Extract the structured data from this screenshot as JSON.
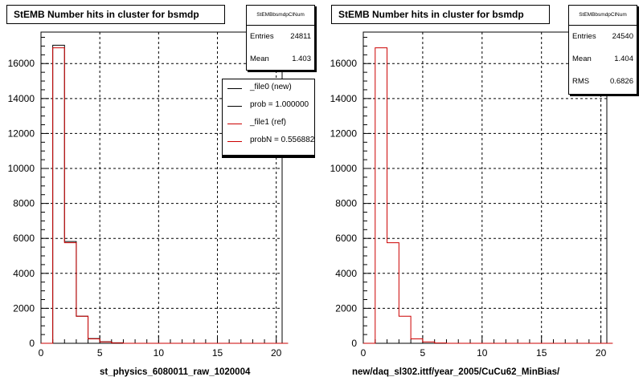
{
  "footer_text": "",
  "panels": [
    {
      "title": "StEMB Number hits in cluster for bsmdp",
      "stats": {
        "name": "StEMBbsmdpClNum",
        "rows": [
          {
            "label": "Entries",
            "value": "24811"
          },
          {
            "label": "Mean",
            "value": "1.403"
          }
        ]
      },
      "legend": [
        {
          "label": "_file0 (new)",
          "color": "#000000"
        },
        {
          "label": "prob = 1.000000",
          "color": "#000000"
        },
        {
          "label": "_file1 (ref)",
          "color": "#cc0000"
        },
        {
          "label": "probN = 0.556882",
          "color": "#cc0000"
        }
      ],
      "xlabel": "st_physics_6080011_raw_1020004"
    },
    {
      "title": "StEMB Number hits in cluster for bsmdp",
      "stats": {
        "name": "StEMBbsmdpClNum",
        "rows": [
          {
            "label": "Entries",
            "value": "24540"
          },
          {
            "label": "Mean",
            "value": "1.404"
          },
          {
            "label": "RMS",
            "value": "0.6826"
          }
        ]
      },
      "legend": [],
      "xlabel": "new/daq_sl302.ittf/year_2005/CuCu62_MinBias/"
    }
  ],
  "chart_data": [
    {
      "type": "bar",
      "histogram": true,
      "title": "StEMB Number hits in cluster for bsmdp",
      "xlabel": "st_physics_6080011_raw_1020004",
      "ylabel": "",
      "xlim": [
        0,
        20.5
      ],
      "ylim": [
        0,
        17800
      ],
      "xticks": [
        0,
        5,
        10,
        15,
        20
      ],
      "yticks": [
        0,
        2000,
        4000,
        6000,
        8000,
        10000,
        12000,
        14000,
        16000
      ],
      "grid": true,
      "bin_edges": [
        0,
        1,
        2,
        3,
        4,
        5,
        6,
        7,
        8,
        9,
        10,
        11,
        12,
        13,
        14,
        15,
        16,
        17,
        18,
        19,
        20,
        21
      ],
      "series": [
        {
          "name": "_file0 (new)",
          "color": "#000000",
          "values": [
            0,
            17050,
            5820,
            1550,
            270,
            90,
            30,
            0,
            0,
            0,
            0,
            0,
            0,
            0,
            0,
            0,
            0,
            0,
            0,
            0,
            0
          ]
        },
        {
          "name": "_file1 (ref)",
          "color": "#cc0000",
          "values": [
            0,
            16900,
            5750,
            1550,
            250,
            80,
            20,
            0,
            0,
            0,
            0,
            0,
            0,
            0,
            0,
            0,
            0,
            0,
            0,
            0,
            0
          ]
        }
      ]
    },
    {
      "type": "bar",
      "histogram": true,
      "title": "StEMB Number hits in cluster for bsmdp",
      "xlabel": "new/daq_sl302.ittf/year_2005/CuCu62_MinBias/",
      "ylabel": "",
      "xlim": [
        0,
        20.5
      ],
      "ylim": [
        0,
        17800
      ],
      "xticks": [
        0,
        5,
        10,
        15,
        20
      ],
      "yticks": [
        0,
        2000,
        4000,
        6000,
        8000,
        10000,
        12000,
        14000,
        16000
      ],
      "grid": true,
      "bin_edges": [
        0,
        1,
        2,
        3,
        4,
        5,
        6,
        7,
        8,
        9,
        10,
        11,
        12,
        13,
        14,
        15,
        16,
        17,
        18,
        19,
        20,
        21
      ],
      "series": [
        {
          "name": "",
          "color": "#cc0000",
          "values": [
            0,
            16900,
            5750,
            1550,
            250,
            80,
            20,
            0,
            0,
            0,
            0,
            0,
            0,
            0,
            0,
            0,
            0,
            0,
            0,
            0,
            0
          ]
        }
      ]
    }
  ]
}
